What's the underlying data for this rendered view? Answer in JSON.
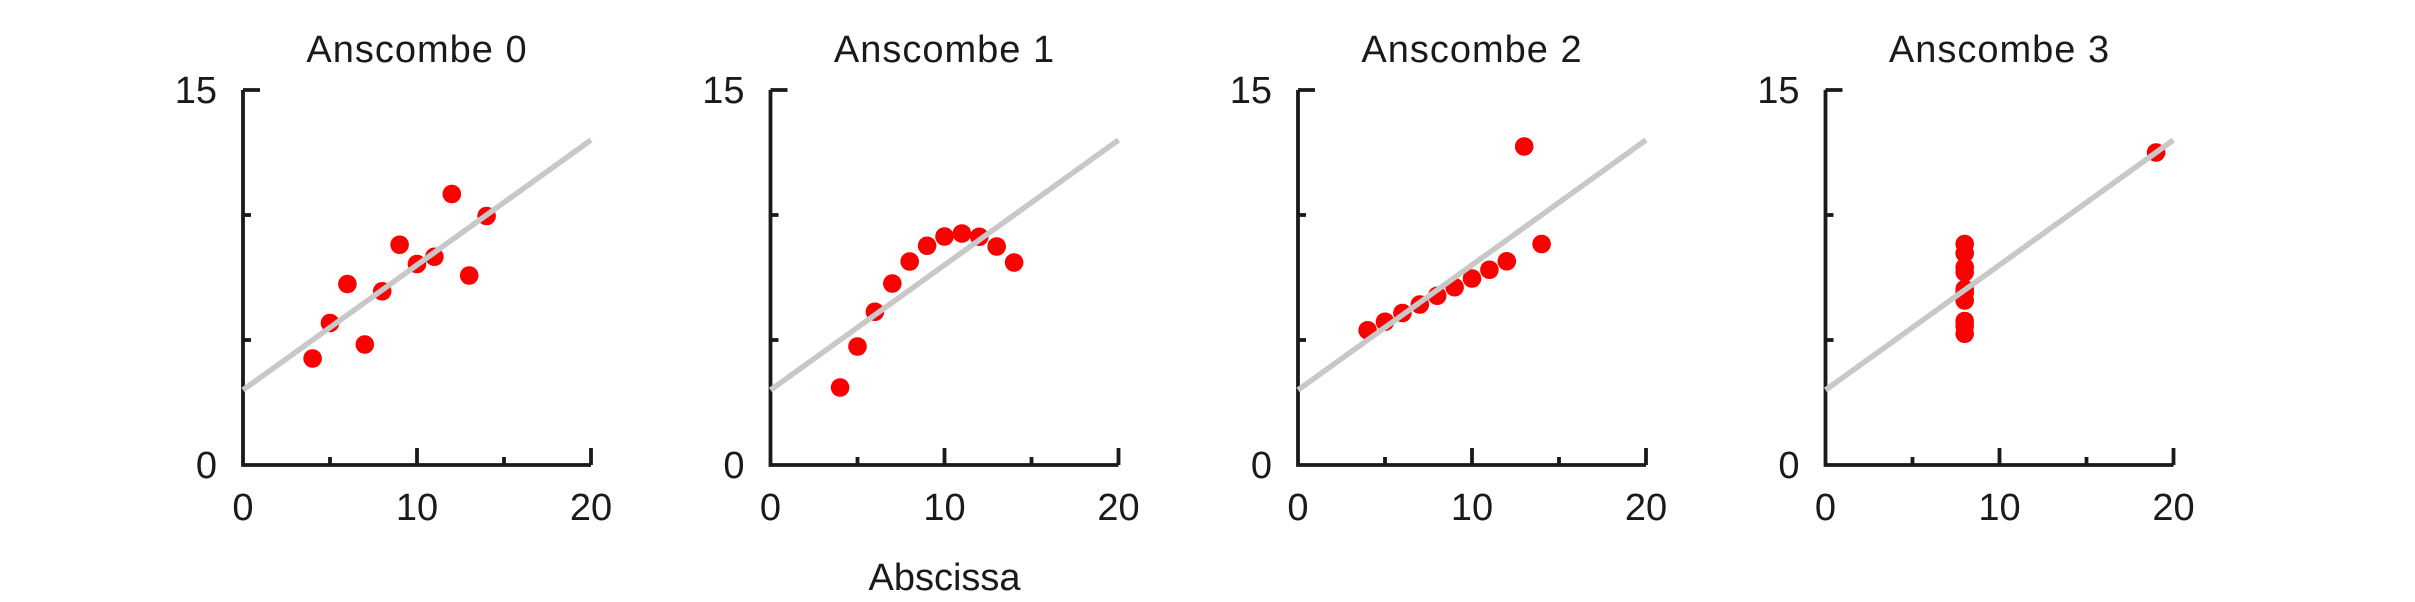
{
  "figure": {
    "background": "#ffffff",
    "text_color": "#1a1a1a",
    "axis_color": "#1a1a1a"
  },
  "chart_data": {
    "type": "scatter",
    "layout": "1x4 small multiples, shared axes",
    "xlabel": "Abscissa",
    "ylabel": "",
    "xlim": [
      0,
      20
    ],
    "ylim": [
      0,
      15
    ],
    "grid": "off",
    "legend": "none",
    "x_tick_labels": [
      {
        "value": 0,
        "label": "0"
      },
      {
        "value": 10,
        "label": "10"
      },
      {
        "value": 20,
        "label": "20"
      }
    ],
    "x_major_ticks": [
      10,
      20
    ],
    "x_minor_ticks": [
      5,
      15
    ],
    "y_tick_labels": [
      {
        "value": 0,
        "label": "0"
      },
      {
        "value": 15,
        "label": "15"
      }
    ],
    "y_major_ticks": [
      15
    ],
    "y_minor_ticks": [
      5,
      10
    ],
    "point_color": "#fa0100",
    "trend_color": "#c8c8c8",
    "trend_line": {
      "slope": 0.5,
      "intercept": 3.0,
      "x_start": 0,
      "x_end": 20
    },
    "series": [
      {
        "name": "Anscombe 0",
        "x": [
          10,
          8,
          13,
          9,
          11,
          14,
          6,
          4,
          12,
          7,
          5
        ],
        "y": [
          8.04,
          6.95,
          7.58,
          8.81,
          8.33,
          9.96,
          7.24,
          4.26,
          10.84,
          4.82,
          5.68
        ]
      },
      {
        "name": "Anscombe 1",
        "x": [
          10,
          8,
          13,
          9,
          11,
          14,
          6,
          4,
          12,
          7,
          5
        ],
        "y": [
          9.14,
          8.14,
          8.74,
          8.77,
          9.26,
          8.1,
          6.13,
          3.1,
          9.13,
          7.26,
          4.74
        ]
      },
      {
        "name": "Anscombe 2",
        "x": [
          10,
          8,
          13,
          9,
          11,
          14,
          6,
          4,
          12,
          7,
          5
        ],
        "y": [
          7.46,
          6.77,
          12.74,
          7.11,
          7.81,
          8.84,
          6.08,
          5.39,
          8.15,
          6.42,
          5.73
        ]
      },
      {
        "name": "Anscombe 3",
        "x": [
          8,
          8,
          8,
          8,
          8,
          8,
          8,
          19,
          8,
          8,
          8
        ],
        "y": [
          6.58,
          5.76,
          7.71,
          8.84,
          8.47,
          7.04,
          5.25,
          12.5,
          5.56,
          7.91,
          6.89
        ]
      }
    ]
  }
}
